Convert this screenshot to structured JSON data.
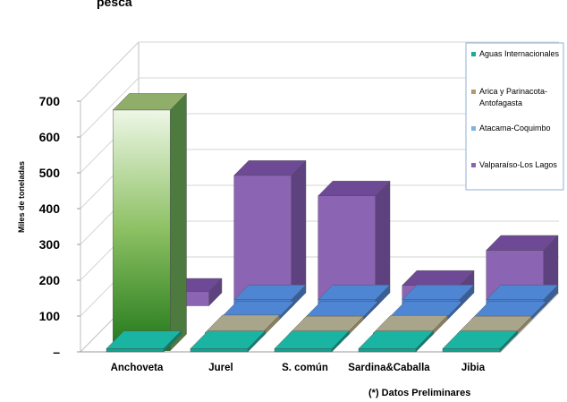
{
  "chart_data": {
    "type": "bar",
    "subtype": "3d-stacked-depth",
    "title": "",
    "xlabel": "",
    "ylabel": "Miles de toneladas",
    "ylim": [
      0,
      700
    ],
    "yticks": [
      "–",
      "100",
      "200",
      "300",
      "400",
      "500",
      "600",
      "700"
    ],
    "categories": [
      "Anchoveta",
      "Jurel",
      "S. común",
      "Sardina&Caballa",
      "Jibia"
    ],
    "series": [
      {
        "name": "Aguas Internacionales",
        "color": "#1aa99a",
        "values": [
          0,
          0,
          0,
          0,
          0
        ]
      },
      {
        "name": "Arica y Parinacota-Antofagasta",
        "color": "#b29a6a",
        "values": [
          672,
          2,
          0,
          1,
          0
        ]
      },
      {
        "name": "Atacama-Coquimbo",
        "color": "#5b8ed6",
        "values": [
          0,
          0,
          0,
          0,
          0
        ]
      },
      {
        "name": "Valparaíso-Los Lagos",
        "color": "#8a62b2",
        "values": [
          0,
          347,
          290,
          40,
          138
        ]
      }
    ],
    "grid": true,
    "legend_position": "right",
    "note": "(*) Datos Preliminares"
  },
  "header_fragment": "pesca"
}
